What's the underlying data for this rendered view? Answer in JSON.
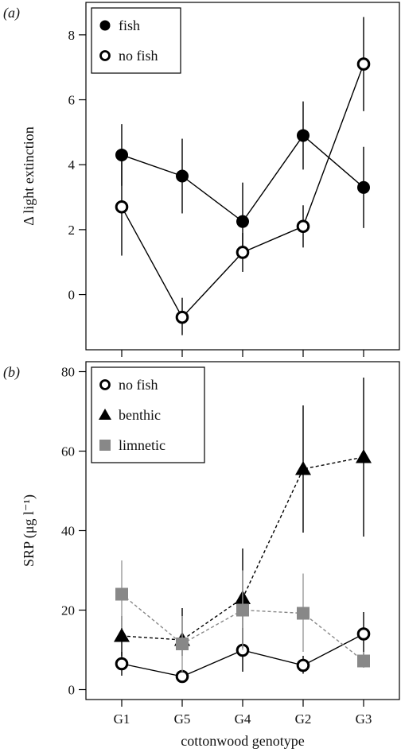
{
  "chart_data": [
    {
      "type": "line",
      "panel_label": "(a)",
      "ylabel": "Δ light extinction",
      "ylim": [
        -1.7,
        9.0
      ],
      "yticks": [
        0,
        2,
        4,
        6,
        8
      ],
      "categories": [
        "G1",
        "G5",
        "G4",
        "G2",
        "G3"
      ],
      "legend_position": "top-left",
      "series": [
        {
          "name": "fish",
          "marker": "filled-circle",
          "color": "#000000",
          "line": "solid",
          "values": [
            4.3,
            3.65,
            2.25,
            4.9,
            3.3
          ],
          "err_low": [
            3.35,
            2.5,
            1.15,
            3.85,
            2.05
          ],
          "err_high": [
            5.25,
            4.8,
            3.45,
            5.95,
            4.55
          ]
        },
        {
          "name": "no fish",
          "marker": "open-circle",
          "color": "#000000",
          "line": "solid",
          "values": [
            2.7,
            -0.7,
            1.3,
            2.1,
            7.1
          ],
          "err_low": [
            1.2,
            -1.25,
            0.7,
            1.45,
            5.65
          ],
          "err_high": [
            4.2,
            -0.1,
            1.9,
            2.75,
            8.55
          ]
        }
      ]
    },
    {
      "type": "line",
      "panel_label": "(b)",
      "ylabel": "SRP (μg l⁻¹)",
      "xlabel": "cottonwood genotype",
      "ylim": [
        -2.5,
        82.5
      ],
      "yticks": [
        0,
        20,
        40,
        60,
        80
      ],
      "categories": [
        "G1",
        "G5",
        "G4",
        "G2",
        "G3"
      ],
      "legend_position": "top-left",
      "series": [
        {
          "name": "no fish",
          "marker": "open-circle",
          "color": "#000000",
          "line": "solid",
          "values": [
            6.5,
            3.3,
            9.9,
            6.1,
            14.0
          ],
          "err_low": [
            3.5,
            2.0,
            4.5,
            4.0,
            8.5
          ],
          "err_high": [
            9.5,
            5.0,
            15.5,
            8.5,
            19.5
          ]
        },
        {
          "name": "benthic",
          "marker": "filled-triangle",
          "color": "#000000",
          "line": "dashed",
          "values": [
            13.5,
            12.5,
            23.0,
            55.5,
            58.5
          ],
          "err_low": [
            8.5,
            8.5,
            10.5,
            39.5,
            38.5
          ],
          "err_high": [
            18.5,
            20.5,
            35.5,
            71.5,
            78.5
          ]
        },
        {
          "name": "limnetic",
          "marker": "filled-square",
          "color": "#888888",
          "line": "dashed",
          "values": [
            24.0,
            11.5,
            20.0,
            19.2,
            7.2
          ],
          "err_low": [
            15.5,
            4.5,
            10.0,
            9.5,
            5.5
          ],
          "err_high": [
            32.5,
            18.5,
            30.0,
            29.2,
            9.5
          ]
        }
      ]
    }
  ]
}
